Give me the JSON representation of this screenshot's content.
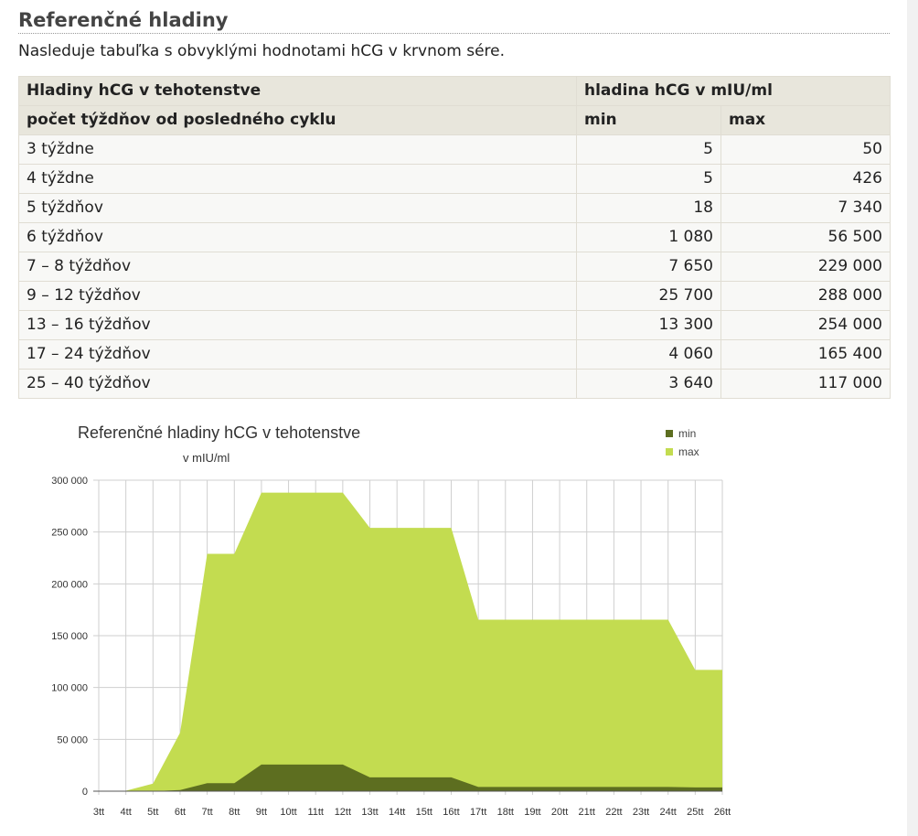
{
  "heading": "Referenčné hladiny",
  "intro": "Nasleduje tabuľka s obvyklými hodnotami hCG v krvnom sére.",
  "table": {
    "header1": [
      "Hladiny hCG v tehotenstve",
      "hladina hCG v mIU/ml"
    ],
    "header2": [
      "počet týždňov od posledného cyklu",
      "min",
      "max"
    ],
    "rows": [
      [
        "3 týždne",
        "5",
        "50"
      ],
      [
        "4 týždne",
        "5",
        "426"
      ],
      [
        "5 týždňov",
        "18",
        "7 340"
      ],
      [
        "6 týždňov",
        "1 080",
        "56 500"
      ],
      [
        "7 – 8 týždňov",
        "7 650",
        "229 000"
      ],
      [
        "9 – 12 týždňov",
        "25 700",
        "288 000"
      ],
      [
        "13 – 16 týždňov",
        "13 300",
        "254 000"
      ],
      [
        "17 – 24 týždňov",
        "4 060",
        "165 400"
      ],
      [
        "25 – 40 týždňov",
        "3 640",
        "117 000"
      ]
    ]
  },
  "chart_data": {
    "type": "area",
    "title": "Referenčné hladiny hCG v tehotenstve",
    "subtitle": "v mIU/ml",
    "categories": [
      "3tt",
      "4tt",
      "5tt",
      "6tt",
      "7tt",
      "8tt",
      "9tt",
      "10tt",
      "11tt",
      "12tt",
      "13tt",
      "14tt",
      "15tt",
      "16tt",
      "17tt",
      "18tt",
      "19tt",
      "20tt",
      "21tt",
      "22tt",
      "23tt",
      "24tt",
      "25tt",
      "26tt"
    ],
    "series": [
      {
        "name": "max",
        "color": "#c3dc50",
        "values": [
          50,
          426,
          7340,
          56500,
          229000,
          229000,
          288000,
          288000,
          288000,
          288000,
          254000,
          254000,
          254000,
          254000,
          165400,
          165400,
          165400,
          165400,
          165400,
          165400,
          165400,
          165400,
          117000,
          117000
        ]
      },
      {
        "name": "min",
        "color": "#5d6e20",
        "values": [
          5,
          5,
          18,
          1080,
          7650,
          7650,
          25700,
          25700,
          25700,
          25700,
          13300,
          13300,
          13300,
          13300,
          4060,
          4060,
          4060,
          4060,
          4060,
          4060,
          4060,
          4060,
          3640,
          3640
        ]
      }
    ],
    "yticks": [
      "0",
      "50 000",
      "100 000",
      "150 000",
      "200 000",
      "250 000",
      "300 000"
    ],
    "ylim": [
      0,
      300000
    ],
    "legend": [
      "min",
      "max"
    ],
    "legend_position": "top-right",
    "grid": true
  }
}
